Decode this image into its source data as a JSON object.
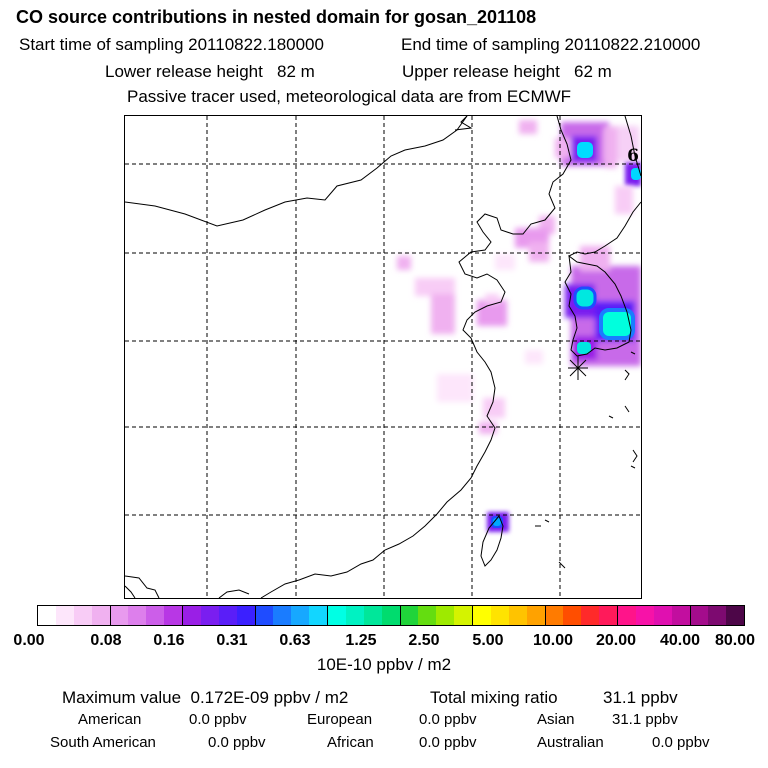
{
  "title": "CO  source contributions in nested domain for gosan_201108",
  "start_label": "Start time of sampling",
  "start_value": "20110822.180000",
  "end_label": "End time of sampling",
  "end_value": "20110822.210000",
  "lower_label": "Lower release height",
  "lower_value": "82 m",
  "upper_label": "Upper release height",
  "upper_value": "62 m",
  "tracer_note": "Passive tracer used, meteorological data are from ECMWF",
  "map": {
    "corner_label": "6",
    "receptor_symbol": "✳"
  },
  "colorbar": {
    "colors": [
      "#ffffff",
      "#fde6fb",
      "#f8ccf6",
      "#f0b1f0",
      "#e89aee",
      "#dd7fec",
      "#cc5ee9",
      "#b837e5",
      "#9a1fe6",
      "#7a1ef0",
      "#5a1ef8",
      "#3b20ff",
      "#1f4cff",
      "#1a7cff",
      "#17a8ff",
      "#12d6ff",
      "#00ffe4",
      "#00f2c2",
      "#00e79a",
      "#00dc6e",
      "#20d43a",
      "#64dd10",
      "#9eea00",
      "#d4f300",
      "#ffff00",
      "#ffe300",
      "#ffc300",
      "#ffa200",
      "#ff7b00",
      "#ff4e00",
      "#ff2a2a",
      "#ff1a5a",
      "#ff148a",
      "#f712a8",
      "#e010b0",
      "#c20e9f",
      "#a40c8c",
      "#7d0a70",
      "#4d0648"
    ],
    "ticks": [
      "0.00",
      "0.08",
      "0.16",
      "0.31",
      "0.63",
      "1.25",
      "2.50",
      "5.00",
      "10.00",
      "20.00",
      "40.00",
      "80.00"
    ],
    "unit": "10E-10 ppbv / m2"
  },
  "stats": {
    "max_label": "Maximum value",
    "max_value": "0.172E-09 ppbv / m2",
    "total_label": "Total mixing ratio",
    "total_value": "31.1 ppbv",
    "regions": [
      {
        "name": "American",
        "value": "0.0 ppbv"
      },
      {
        "name": "European",
        "value": "0.0 ppbv"
      },
      {
        "name": "Asian",
        "value": "31.1 ppbv"
      },
      {
        "name": "South American",
        "value": "0.0 ppbv"
      },
      {
        "name": "African",
        "value": "0.0 ppbv"
      },
      {
        "name": "Australian",
        "value": "0.0 ppbv"
      }
    ]
  }
}
